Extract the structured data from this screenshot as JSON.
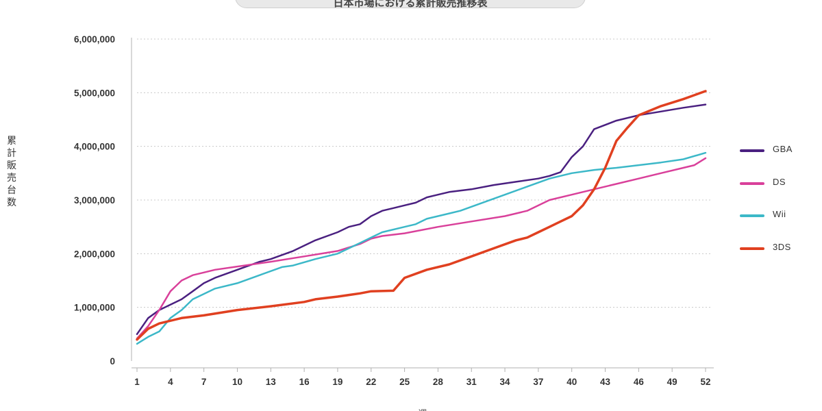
{
  "chart_data": {
    "type": "line",
    "title": "日本市場における累計販売推移表",
    "ylabel": "累計販売台数",
    "xlabel": "週",
    "ylim": [
      0,
      6000000
    ],
    "xlim": [
      1,
      52
    ],
    "y_ticks": [
      "0",
      "1,000,000",
      "2,000,000",
      "3,000,000",
      "4,000,000",
      "5,000,000",
      "6,000,000"
    ],
    "y_tick_values": [
      0,
      1000000,
      2000000,
      3000000,
      4000000,
      5000000,
      6000000
    ],
    "x_ticks": [
      1,
      4,
      7,
      10,
      13,
      16,
      19,
      22,
      25,
      28,
      31,
      34,
      37,
      40,
      43,
      46,
      49,
      52
    ],
    "grid": "horizontal dotted",
    "legend": "right",
    "series": [
      {
        "name": "GBA",
        "color": "#4a2080",
        "points": [
          [
            1,
            500000
          ],
          [
            2,
            800000
          ],
          [
            3,
            950000
          ],
          [
            4,
            1050000
          ],
          [
            5,
            1150000
          ],
          [
            6,
            1300000
          ],
          [
            7,
            1450000
          ],
          [
            8,
            1550000
          ],
          [
            10,
            1700000
          ],
          [
            12,
            1850000
          ],
          [
            13,
            1900000
          ],
          [
            15,
            2050000
          ],
          [
            17,
            2250000
          ],
          [
            19,
            2400000
          ],
          [
            20,
            2500000
          ],
          [
            21,
            2550000
          ],
          [
            22,
            2700000
          ],
          [
            23,
            2800000
          ],
          [
            24,
            2850000
          ],
          [
            25,
            2900000
          ],
          [
            26,
            2950000
          ],
          [
            27,
            3050000
          ],
          [
            28,
            3100000
          ],
          [
            29,
            3150000
          ],
          [
            31,
            3200000
          ],
          [
            33,
            3280000
          ],
          [
            35,
            3340000
          ],
          [
            37,
            3400000
          ],
          [
            38,
            3450000
          ],
          [
            39,
            3520000
          ],
          [
            40,
            3800000
          ],
          [
            41,
            4000000
          ],
          [
            42,
            4320000
          ],
          [
            44,
            4480000
          ],
          [
            46,
            4580000
          ],
          [
            48,
            4650000
          ],
          [
            50,
            4720000
          ],
          [
            52,
            4780000
          ]
        ]
      },
      {
        "name": "DS",
        "color": "#d9409a",
        "points": [
          [
            1,
            420000
          ],
          [
            2,
            650000
          ],
          [
            3,
            950000
          ],
          [
            4,
            1300000
          ],
          [
            5,
            1500000
          ],
          [
            6,
            1600000
          ],
          [
            7,
            1650000
          ],
          [
            8,
            1700000
          ],
          [
            10,
            1760000
          ],
          [
            13,
            1850000
          ],
          [
            16,
            1950000
          ],
          [
            19,
            2050000
          ],
          [
            21,
            2180000
          ],
          [
            22,
            2280000
          ],
          [
            23,
            2330000
          ],
          [
            25,
            2380000
          ],
          [
            28,
            2500000
          ],
          [
            31,
            2600000
          ],
          [
            34,
            2700000
          ],
          [
            36,
            2800000
          ],
          [
            38,
            3000000
          ],
          [
            40,
            3100000
          ],
          [
            42,
            3200000
          ],
          [
            44,
            3300000
          ],
          [
            46,
            3400000
          ],
          [
            48,
            3500000
          ],
          [
            50,
            3600000
          ],
          [
            51,
            3650000
          ],
          [
            52,
            3780000
          ]
        ]
      },
      {
        "name": "Wii",
        "color": "#3cb8c8",
        "points": [
          [
            1,
            320000
          ],
          [
            2,
            450000
          ],
          [
            3,
            550000
          ],
          [
            4,
            800000
          ],
          [
            5,
            950000
          ],
          [
            6,
            1150000
          ],
          [
            7,
            1250000
          ],
          [
            8,
            1350000
          ],
          [
            10,
            1450000
          ],
          [
            12,
            1600000
          ],
          [
            14,
            1750000
          ],
          [
            15,
            1780000
          ],
          [
            17,
            1900000
          ],
          [
            19,
            2000000
          ],
          [
            20,
            2100000
          ],
          [
            21,
            2200000
          ],
          [
            22,
            2300000
          ],
          [
            23,
            2400000
          ],
          [
            25,
            2500000
          ],
          [
            26,
            2550000
          ],
          [
            27,
            2650000
          ],
          [
            29,
            2750000
          ],
          [
            30,
            2800000
          ],
          [
            32,
            2950000
          ],
          [
            34,
            3100000
          ],
          [
            36,
            3250000
          ],
          [
            38,
            3400000
          ],
          [
            40,
            3500000
          ],
          [
            42,
            3560000
          ],
          [
            44,
            3600000
          ],
          [
            46,
            3650000
          ],
          [
            48,
            3700000
          ],
          [
            50,
            3760000
          ],
          [
            52,
            3880000
          ]
        ]
      },
      {
        "name": "3DS",
        "color": "#e04020",
        "points": [
          [
            1,
            400000
          ],
          [
            2,
            600000
          ],
          [
            3,
            700000
          ],
          [
            5,
            800000
          ],
          [
            7,
            850000
          ],
          [
            10,
            950000
          ],
          [
            13,
            1020000
          ],
          [
            16,
            1100000
          ],
          [
            17,
            1150000
          ],
          [
            19,
            1200000
          ],
          [
            21,
            1260000
          ],
          [
            22,
            1300000
          ],
          [
            24,
            1310000
          ],
          [
            25,
            1550000
          ],
          [
            27,
            1700000
          ],
          [
            29,
            1800000
          ],
          [
            31,
            1950000
          ],
          [
            33,
            2100000
          ],
          [
            35,
            2250000
          ],
          [
            36,
            2300000
          ],
          [
            37,
            2400000
          ],
          [
            38,
            2500000
          ],
          [
            39,
            2600000
          ],
          [
            40,
            2700000
          ],
          [
            41,
            2900000
          ],
          [
            42,
            3200000
          ],
          [
            43,
            3600000
          ],
          [
            44,
            4100000
          ],
          [
            45,
            4350000
          ],
          [
            46,
            4580000
          ],
          [
            48,
            4750000
          ],
          [
            50,
            4880000
          ],
          [
            52,
            5030000
          ]
        ]
      }
    ]
  }
}
